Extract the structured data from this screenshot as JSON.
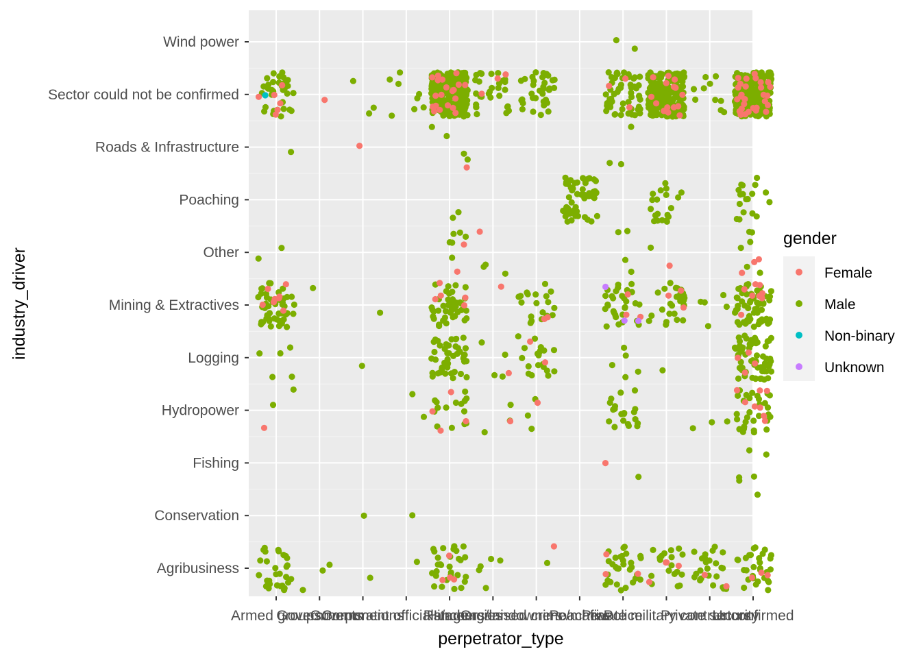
{
  "chart_data": {
    "type": "scatter",
    "jitter": true,
    "xlabel": "perpetrator_type",
    "ylabel": "industry_driver",
    "x_categories": [
      "Armed groups",
      "Governments",
      "Corporations",
      "Government officials/agencies",
      "Hitmen",
      "Ranchers/landowners",
      "Organised crime/mafias",
      "Poachers",
      "Police",
      "Private military contractors",
      "Private security",
      "Unconfirmed"
    ],
    "y_categories": [
      "Agribusiness",
      "Conservation",
      "Fishing",
      "Hydropower",
      "Logging",
      "Mining & Extractives",
      "Other",
      "Poaching",
      "Roads & Infrastructure",
      "Sector could not be confirmed",
      "Wind power"
    ],
    "legend": {
      "title": "gender",
      "position": "right",
      "entries": [
        {
          "label": "Female",
          "color": "#F8766D"
        },
        {
          "label": "Male",
          "color": "#7CAE00"
        },
        {
          "label": "Non-binary",
          "color": "#00BFC4"
        },
        {
          "label": "Unknown",
          "color": "#C77CFF"
        }
      ]
    },
    "grid": true,
    "panel_background": "#EBEBEB",
    "cells": [
      {
        "x": "Armed groups",
        "y": "Sector could not be confirmed",
        "Male": 35,
        "Female": 6,
        "Non-binary": 1
      },
      {
        "x": "Armed groups",
        "y": "Roads & Infrastructure",
        "Male": 1
      },
      {
        "x": "Armed groups",
        "y": "Other",
        "Male": 2
      },
      {
        "x": "Armed groups",
        "y": "Mining & Extractives",
        "Male": 50,
        "Female": 8
      },
      {
        "x": "Armed groups",
        "y": "Logging",
        "Male": 5
      },
      {
        "x": "Armed groups",
        "y": "Hydropower",
        "Male": 2,
        "Female": 1
      },
      {
        "x": "Armed groups",
        "y": "Agribusiness",
        "Male": 30
      },
      {
        "x": "Governments",
        "y": "Sector could not be confirmed",
        "Female": 1
      },
      {
        "x": "Governments",
        "y": "Mining & Extractives",
        "Male": 1
      },
      {
        "x": "Governments",
        "y": "Agribusiness",
        "Male": 3
      },
      {
        "x": "Corporations",
        "y": "Sector could not be confirmed",
        "Male": 3
      },
      {
        "x": "Corporations",
        "y": "Roads & Infrastructure",
        "Female": 1
      },
      {
        "x": "Corporations",
        "y": "Mining & Extractives",
        "Male": 1
      },
      {
        "x": "Corporations",
        "y": "Logging",
        "Male": 1
      },
      {
        "x": "Corporations",
        "y": "Conservation",
        "Male": 1
      },
      {
        "x": "Corporations",
        "y": "Agribusiness",
        "Male": 1
      },
      {
        "x": "Government officials/agencies",
        "y": "Sector could not be confirmed",
        "Male": 8
      },
      {
        "x": "Government officials/agencies",
        "y": "Hydropower",
        "Male": 2
      },
      {
        "x": "Government officials/agencies",
        "y": "Agribusiness",
        "Male": 1
      },
      {
        "x": "Government officials/agencies",
        "y": "Conservation",
        "Male": 1
      },
      {
        "x": "Hitmen",
        "y": "Sector could not be confirmed",
        "Male": 260,
        "Female": 20
      },
      {
        "x": "Hitmen",
        "y": "Roads & Infrastructure",
        "Male": 4,
        "Female": 1
      },
      {
        "x": "Hitmen",
        "y": "Poaching",
        "Male": 2
      },
      {
        "x": "Hitmen",
        "y": "Other",
        "Male": 6,
        "Female": 2
      },
      {
        "x": "Hitmen",
        "y": "Mining & Extractives",
        "Male": 45,
        "Female": 5
      },
      {
        "x": "Hitmen",
        "y": "Logging",
        "Male": 45
      },
      {
        "x": "Hitmen",
        "y": "Hydropower",
        "Male": 15,
        "Female": 4
      },
      {
        "x": "Hitmen",
        "y": "Agribusiness",
        "Male": 30,
        "Female": 4
      },
      {
        "x": "Ranchers/landowners",
        "y": "Sector could not be confirmed",
        "Male": 30,
        "Female": 3
      },
      {
        "x": "Ranchers/landowners",
        "y": "Other",
        "Male": 3,
        "Female": 1
      },
      {
        "x": "Ranchers/landowners",
        "y": "Logging",
        "Male": 4,
        "Female": 1
      },
      {
        "x": "Ranchers/landowners",
        "y": "Mining & Extractives",
        "Female": 1
      },
      {
        "x": "Ranchers/landowners",
        "y": "Hydropower",
        "Male": 3,
        "Female": 1
      },
      {
        "x": "Ranchers/landowners",
        "y": "Agribusiness",
        "Male": 5
      },
      {
        "x": "Organised crime/mafias",
        "y": "Sector could not be confirmed",
        "Male": 35
      },
      {
        "x": "Organised crime/mafias",
        "y": "Mining & Extractives",
        "Male": 20,
        "Female": 2
      },
      {
        "x": "Organised crime/mafias",
        "y": "Logging",
        "Male": 20,
        "Female": 2
      },
      {
        "x": "Organised crime/mafias",
        "y": "Hydropower",
        "Male": 3,
        "Female": 1
      },
      {
        "x": "Organised crime/mafias",
        "y": "Agribusiness",
        "Male": 1,
        "Female": 1
      },
      {
        "x": "Poachers",
        "y": "Poaching",
        "Male": 55
      },
      {
        "x": "Police",
        "y": "Wind power",
        "Male": 2
      },
      {
        "x": "Police",
        "y": "Sector could not be confirmed",
        "Male": 55,
        "Female": 3
      },
      {
        "x": "Police",
        "y": "Roads & Infrastructure",
        "Male": 3
      },
      {
        "x": "Police",
        "y": "Other",
        "Male": 4
      },
      {
        "x": "Police",
        "y": "Mining & Extractives",
        "Male": 30,
        "Female": 3,
        "Unknown": 3
      },
      {
        "x": "Police",
        "y": "Logging",
        "Male": 5
      },
      {
        "x": "Police",
        "y": "Hydropower",
        "Male": 20
      },
      {
        "x": "Police",
        "y": "Fishing",
        "Male": 1,
        "Female": 1
      },
      {
        "x": "Police",
        "y": "Agribusiness",
        "Male": 30,
        "Female": 3
      },
      {
        "x": "Private military contractors",
        "y": "Sector could not be confirmed",
        "Male": 210,
        "Female": 15
      },
      {
        "x": "Private military contractors",
        "y": "Poaching",
        "Male": 20
      },
      {
        "x": "Private military contractors",
        "y": "Other",
        "Male": 1,
        "Female": 1
      },
      {
        "x": "Private military contractors",
        "y": "Mining & Extractives",
        "Male": 28,
        "Female": 3
      },
      {
        "x": "Private military contractors",
        "y": "Logging",
        "Male": 1
      },
      {
        "x": "Private military contractors",
        "y": "Agribusiness",
        "Male": 18,
        "Female": 4
      },
      {
        "x": "Private security",
        "y": "Sector could not be confirmed",
        "Male": 10
      },
      {
        "x": "Private security",
        "y": "Mining & Extractives",
        "Male": 5
      },
      {
        "x": "Private security",
        "y": "Hydropower",
        "Male": 3
      },
      {
        "x": "Private security",
        "y": "Agribusiness",
        "Male": 25,
        "Female": 2
      },
      {
        "x": "Unconfirmed",
        "y": "Sector could not be confirmed",
        "Male": 240,
        "Female": 30
      },
      {
        "x": "Unconfirmed",
        "y": "Poaching",
        "Male": 18
      },
      {
        "x": "Unconfirmed",
        "y": "Other",
        "Male": 6,
        "Female": 3
      },
      {
        "x": "Unconfirmed",
        "y": "Mining & Extractives",
        "Male": 60,
        "Female": 8
      },
      {
        "x": "Unconfirmed",
        "y": "Logging",
        "Male": 60,
        "Female": 4
      },
      {
        "x": "Unconfirmed",
        "y": "Hydropower",
        "Male": 30,
        "Female": 8
      },
      {
        "x": "Unconfirmed",
        "y": "Fishing",
        "Male": 5
      },
      {
        "x": "Unconfirmed",
        "y": "Conservation",
        "Male": 1
      },
      {
        "x": "Unconfirmed",
        "y": "Agribusiness",
        "Male": 30,
        "Female": 3
      }
    ]
  }
}
